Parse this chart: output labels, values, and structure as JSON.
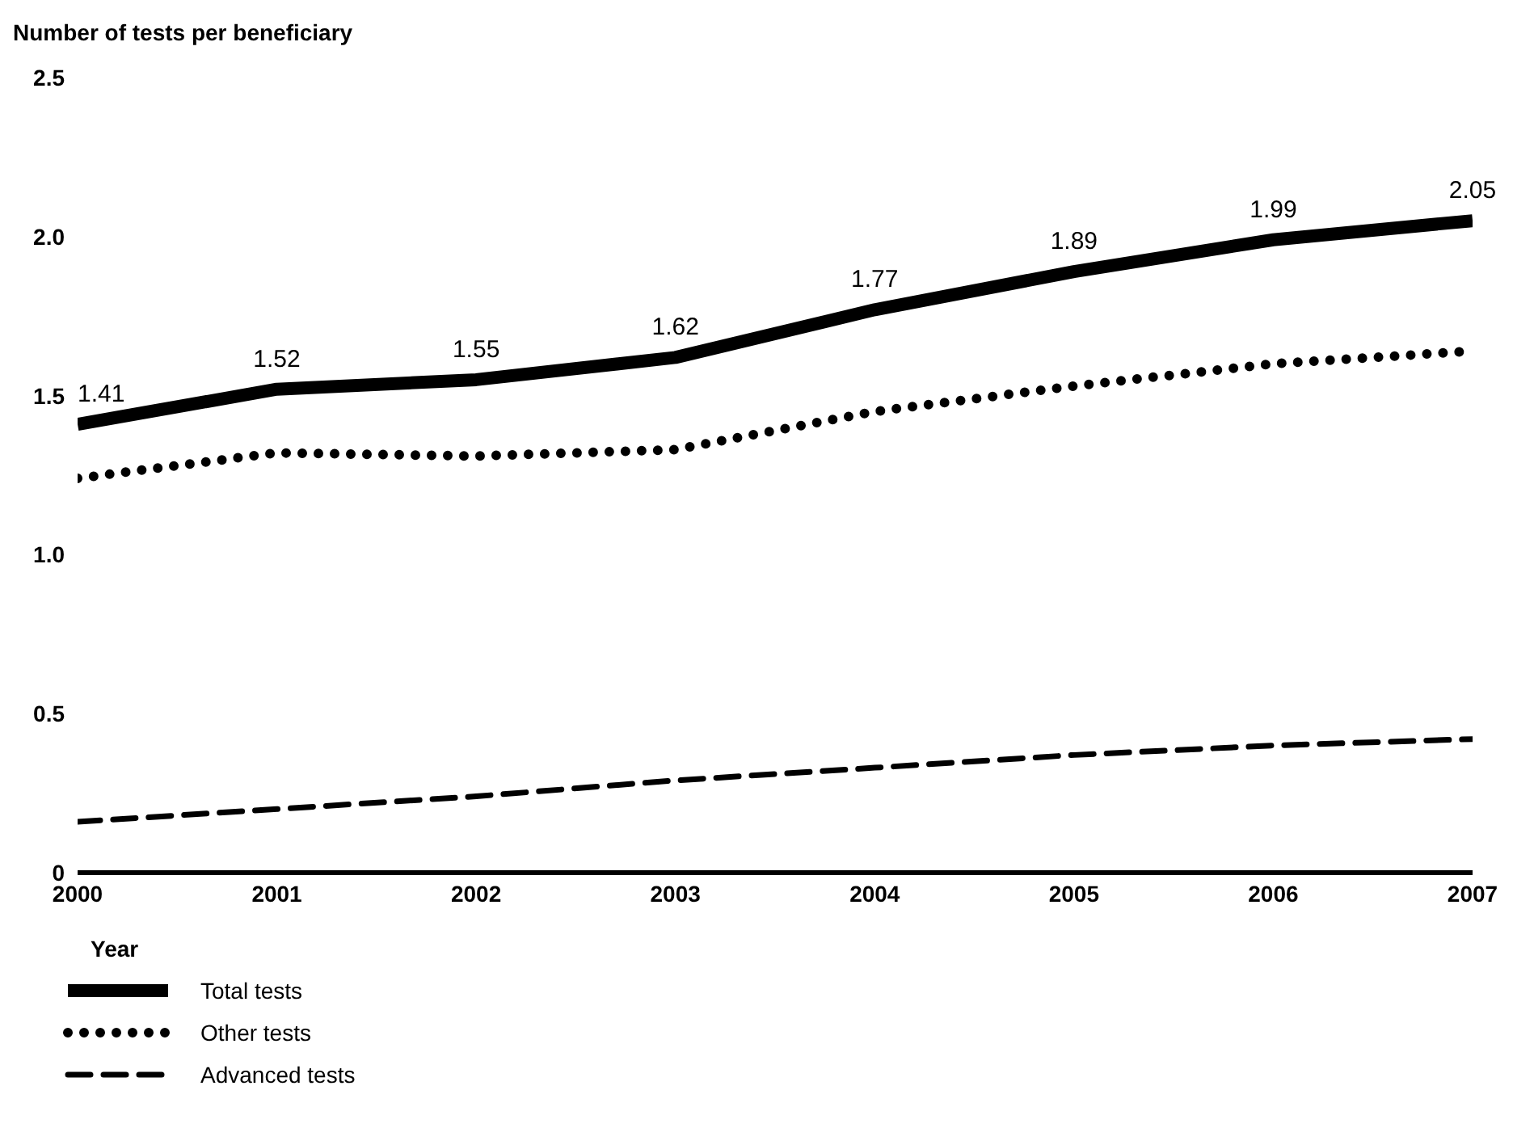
{
  "chart_data": {
    "type": "line",
    "ylabel": "Number of tests per beneficiary",
    "xlabel": "Year",
    "x": [
      2000,
      2001,
      2002,
      2003,
      2004,
      2005,
      2006,
      2007
    ],
    "xlim": [
      2000,
      2007
    ],
    "xticks": [
      2000,
      2001,
      2002,
      2003,
      2004,
      2005,
      2006,
      2007
    ],
    "ylim": [
      0,
      2.5
    ],
    "yticks": [
      0,
      0.5,
      {
        "value": 1,
        "label": "1.0"
      },
      1.5,
      {
        "value": 2,
        "label": "2.0"
      },
      2.5
    ],
    "grid": false,
    "legend": "bottom left",
    "marker": "none",
    "series": [
      {
        "name": "Total tests",
        "color": "#000000",
        "line_style": "solid",
        "values": [
          1.41,
          1.52,
          1.55,
          1.62,
          1.77,
          1.89,
          1.99,
          2.05
        ],
        "value_labels": [
          "1.41",
          "1.52",
          "1.55",
          "1.62",
          "1.77",
          "1.89",
          "1.99",
          "2.05"
        ]
      },
      {
        "name": "Other tests",
        "color": "#000000",
        "line_style": "dotted",
        "values": [
          1.24,
          1.32,
          1.31,
          1.33,
          1.45,
          1.53,
          1.6,
          1.64
        ]
      },
      {
        "name": "Advanced tests",
        "color": "#000000",
        "line_style": "dashed",
        "values": [
          0.16,
          0.2,
          0.24,
          0.29,
          0.33,
          0.37,
          0.4,
          0.42
        ]
      }
    ]
  }
}
